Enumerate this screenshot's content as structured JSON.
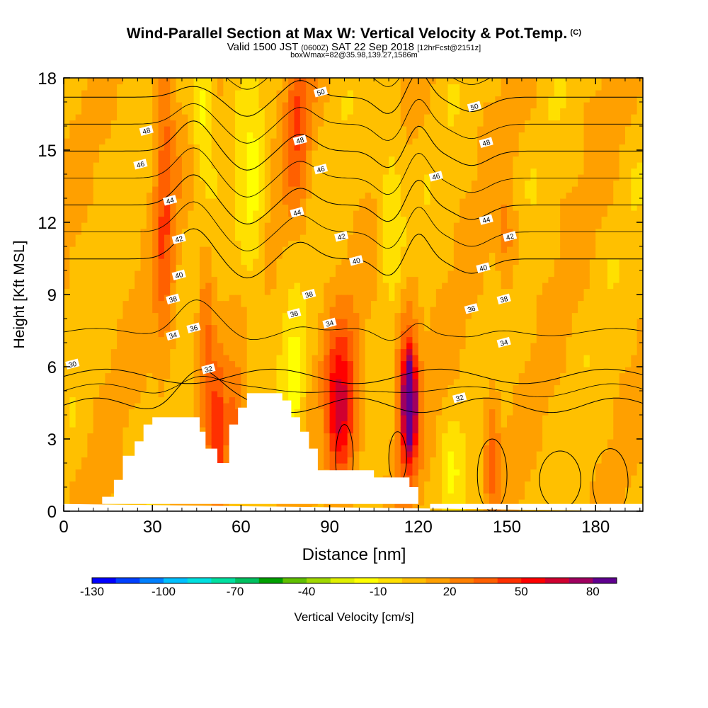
{
  "title": {
    "main": "Wind-Parallel Section at Max W: Vertical Velocity & Pot.Temp.",
    "main_unit": "(C)",
    "valid_prefix": "Valid 1500 JST",
    "valid_z": "(0600Z)",
    "valid_date": "SAT 22 Sep 2018",
    "valid_fcst": "[12hrFcst@2151z]",
    "box": "boxWmax=82@35.98,139.27,1586m"
  },
  "chart_data": {
    "type": "heatmap",
    "xlabel": "Distance [nm]",
    "ylabel": "Height [Kft MSL]",
    "xlim": [
      0,
      196
    ],
    "ylim": [
      0,
      18
    ],
    "x_ticks": [
      "0",
      "30",
      "60",
      "90",
      "120",
      "150",
      "180"
    ],
    "x_tick_values": [
      0,
      30,
      60,
      90,
      120,
      150,
      180
    ],
    "y_ticks": [
      "0",
      "3",
      "6",
      "9",
      "12",
      "15",
      "18"
    ],
    "y_tick_values": [
      0,
      3,
      6,
      9,
      12,
      15,
      18
    ],
    "colorbar": {
      "title": "Vertical Velocity [cm/s]",
      "labels": [
        "-130",
        "-100",
        "-70",
        "-40",
        "-10",
        "20",
        "50",
        "80"
      ],
      "label_values": [
        -130,
        -100,
        -70,
        -40,
        -10,
        20,
        50,
        80
      ],
      "range": [
        -130,
        90
      ],
      "colors": [
        "#0000ff",
        "#0040ff",
        "#0080ff",
        "#00c0ff",
        "#00e0e0",
        "#00e0a0",
        "#00c060",
        "#00a000",
        "#60c000",
        "#a0d800",
        "#e0f000",
        "#ffff00",
        "#ffe000",
        "#ffc000",
        "#ffa000",
        "#ff8000",
        "#ff6000",
        "#ff3000",
        "#ff0000",
        "#d00030",
        "#a00060",
        "#600090"
      ]
    },
    "terrain": [
      [
        0,
        0.3
      ],
      [
        13,
        0.3
      ],
      [
        13,
        0.6
      ],
      [
        17,
        0.6
      ],
      [
        17,
        1.3
      ],
      [
        20,
        1.3
      ],
      [
        20,
        2.3
      ],
      [
        24,
        2.3
      ],
      [
        24,
        2.9
      ],
      [
        27,
        2.9
      ],
      [
        27,
        3.6
      ],
      [
        30,
        3.6
      ],
      [
        30,
        3.9
      ],
      [
        46,
        3.9
      ],
      [
        46,
        3.3
      ],
      [
        48,
        3.3
      ],
      [
        48,
        2.6
      ],
      [
        52,
        2.6
      ],
      [
        52,
        2
      ],
      [
        56,
        2
      ],
      [
        56,
        3.6
      ],
      [
        59,
        3.6
      ],
      [
        59,
        4.3
      ],
      [
        62,
        4.3
      ],
      [
        62,
        4.9
      ],
      [
        74,
        4.9
      ],
      [
        74,
        4.6
      ],
      [
        77,
        4.6
      ],
      [
        77,
        3.9
      ],
      [
        80,
        3.9
      ],
      [
        80,
        3.3
      ],
      [
        83,
        3.3
      ],
      [
        83,
        2.6
      ],
      [
        86,
        2.6
      ],
      [
        86,
        1.7
      ],
      [
        105,
        1.7
      ],
      [
        105,
        1.4
      ],
      [
        117,
        1.4
      ],
      [
        117,
        1
      ],
      [
        120,
        1
      ],
      [
        120,
        0.3
      ],
      [
        124,
        0.3
      ],
      [
        124,
        0
      ],
      [
        196,
        0
      ],
      [
        196,
        0.3
      ],
      [
        0,
        0.3
      ]
    ],
    "w_features": [
      {
        "kind": "updraft",
        "x": 117,
        "z": 4.5,
        "sx": 1.3,
        "sz": 1.2,
        "amp": 95
      },
      {
        "kind": "updraft",
        "x": 116.5,
        "z": 5.0,
        "sx": 2.8,
        "sz": 2.8,
        "amp": 45
      },
      {
        "kind": "updraft",
        "x": 94,
        "z": 4.0,
        "sx": 3.5,
        "sz": 2.0,
        "amp": 40
      },
      {
        "kind": "updraft",
        "x": 93,
        "z": 4.5,
        "sx": 5.0,
        "sz": 3.0,
        "amp": 18
      },
      {
        "kind": "updraft",
        "x": 52,
        "z": 3.0,
        "sx": 2.0,
        "sz": 2.5,
        "amp": 35
      },
      {
        "kind": "updraft",
        "x": 48,
        "z": 7.5,
        "sx": 2.0,
        "sz": 2.0,
        "amp": 30
      },
      {
        "kind": "updraft",
        "x": 58,
        "z": 3.5,
        "sx": 2.0,
        "sz": 1.3,
        "amp": 28
      },
      {
        "kind": "updraft",
        "x": 34,
        "z": 13.0,
        "sx": 2.5,
        "sz": 5.0,
        "amp": 28
      },
      {
        "kind": "updraft",
        "x": 79,
        "z": 16.5,
        "sx": 3.0,
        "sz": 3.0,
        "amp": 28
      },
      {
        "kind": "updraft",
        "x": 145,
        "z": 2.5,
        "sx": 2.0,
        "sz": 2.0,
        "amp": 25
      },
      {
        "kind": "updraft",
        "x": 150,
        "z": 11.0,
        "sx": 2.5,
        "sz": 1.5,
        "amp": 20
      },
      {
        "kind": "downdraft",
        "x": 47,
        "z": 17.0,
        "sx": 2.5,
        "sz": 2.0,
        "amp": -28
      },
      {
        "kind": "downdraft",
        "x": 64,
        "z": 12.5,
        "sx": 3.0,
        "sz": 3.0,
        "amp": -22
      },
      {
        "kind": "downdraft",
        "x": 111,
        "z": 13.0,
        "sx": 3.0,
        "sz": 2.5,
        "amp": -22
      },
      {
        "kind": "downdraft",
        "x": 78,
        "z": 5.5,
        "sx": 2.5,
        "sz": 2.0,
        "amp": -22
      },
      {
        "kind": "downdraft",
        "x": 87,
        "z": 3.0,
        "sx": 2.0,
        "sz": 1.2,
        "amp": -18
      },
      {
        "kind": "downdraft",
        "x": 131,
        "z": 1.5,
        "sx": 2.5,
        "sz": 1.5,
        "amp": -16
      }
    ],
    "theta": {
      "levels": [
        30,
        32,
        34,
        36,
        38,
        40,
        42,
        44,
        46,
        48,
        50
      ],
      "label_positions": [
        {
          "text": "30",
          "x": 3,
          "z": 6.1
        },
        {
          "text": "32",
          "x": 49,
          "z": 5.9
        },
        {
          "text": "32",
          "x": 134,
          "z": 4.7
        },
        {
          "text": "34",
          "x": 37,
          "z": 7.3
        },
        {
          "text": "34",
          "x": 90,
          "z": 7.8
        },
        {
          "text": "34",
          "x": 149,
          "z": 7.0
        },
        {
          "text": "36",
          "x": 44,
          "z": 7.6
        },
        {
          "text": "36",
          "x": 78,
          "z": 8.2
        },
        {
          "text": "36",
          "x": 138,
          "z": 8.4
        },
        {
          "text": "38",
          "x": 37,
          "z": 8.8
        },
        {
          "text": "38",
          "x": 83,
          "z": 9.0
        },
        {
          "text": "38",
          "x": 149,
          "z": 8.8
        },
        {
          "text": "40",
          "x": 39,
          "z": 9.8
        },
        {
          "text": "40",
          "x": 99,
          "z": 10.4
        },
        {
          "text": "40",
          "x": 142,
          "z": 10.1
        },
        {
          "text": "42",
          "x": 39,
          "z": 11.3
        },
        {
          "text": "42",
          "x": 94,
          "z": 11.4
        },
        {
          "text": "42",
          "x": 151,
          "z": 11.4
        },
        {
          "text": "44",
          "x": 36,
          "z": 12.9
        },
        {
          "text": "44",
          "x": 79,
          "z": 12.4
        },
        {
          "text": "44",
          "x": 143,
          "z": 12.1
        },
        {
          "text": "46",
          "x": 26,
          "z": 14.4
        },
        {
          "text": "46",
          "x": 87,
          "z": 14.2
        },
        {
          "text": "46",
          "x": 126,
          "z": 13.9
        },
        {
          "text": "48",
          "x": 28,
          "z": 15.8
        },
        {
          "text": "48",
          "x": 80,
          "z": 15.4
        },
        {
          "text": "48",
          "x": 143,
          "z": 15.3
        },
        {
          "text": "50",
          "x": 87,
          "z": 17.4
        },
        {
          "text": "50",
          "x": 139,
          "z": 16.8
        }
      ]
    }
  }
}
